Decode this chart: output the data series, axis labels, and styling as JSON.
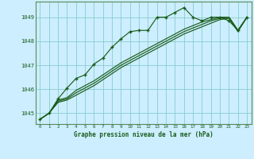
{
  "background_color": "#cceeff",
  "plot_bg_color": "#cceeff",
  "line_color": "#1a5c1a",
  "marker_color": "#1a5c1a",
  "grid_color": "#88cccc",
  "title": "Graphe pression niveau de la mer (hPa)",
  "ylabel_ticks": [
    1045,
    1046,
    1047,
    1048,
    1049
  ],
  "xlim": [
    -0.5,
    23.5
  ],
  "ylim": [
    1044.55,
    1049.65
  ],
  "series1": [
    1044.75,
    1045.0,
    1045.6,
    1046.05,
    1046.45,
    1046.6,
    1047.05,
    1047.3,
    1047.75,
    1048.1,
    1048.4,
    1048.45,
    1048.45,
    1049.0,
    1049.0,
    1049.2,
    1049.4,
    1049.0,
    1048.85,
    1049.0,
    1049.0,
    1048.85,
    1048.45,
    1049.0
  ],
  "series2": [
    1044.75,
    1045.0,
    1045.55,
    1045.65,
    1045.95,
    1046.15,
    1046.35,
    1046.6,
    1046.85,
    1047.1,
    1047.3,
    1047.5,
    1047.7,
    1047.9,
    1048.1,
    1048.3,
    1048.5,
    1048.65,
    1048.8,
    1048.9,
    1049.0,
    1049.0,
    1048.45,
    1049.0
  ],
  "series3": [
    1044.75,
    1045.0,
    1045.5,
    1045.6,
    1045.85,
    1046.05,
    1046.25,
    1046.5,
    1046.75,
    1047.0,
    1047.2,
    1047.4,
    1047.6,
    1047.8,
    1048.0,
    1048.2,
    1048.4,
    1048.55,
    1048.7,
    1048.85,
    1048.95,
    1049.0,
    1048.45,
    1049.0
  ],
  "series4": [
    1044.75,
    1045.0,
    1045.45,
    1045.55,
    1045.75,
    1045.95,
    1046.15,
    1046.4,
    1046.65,
    1046.9,
    1047.1,
    1047.3,
    1047.5,
    1047.7,
    1047.9,
    1048.1,
    1048.3,
    1048.45,
    1048.6,
    1048.75,
    1048.9,
    1048.95,
    1048.4,
    1049.0
  ]
}
